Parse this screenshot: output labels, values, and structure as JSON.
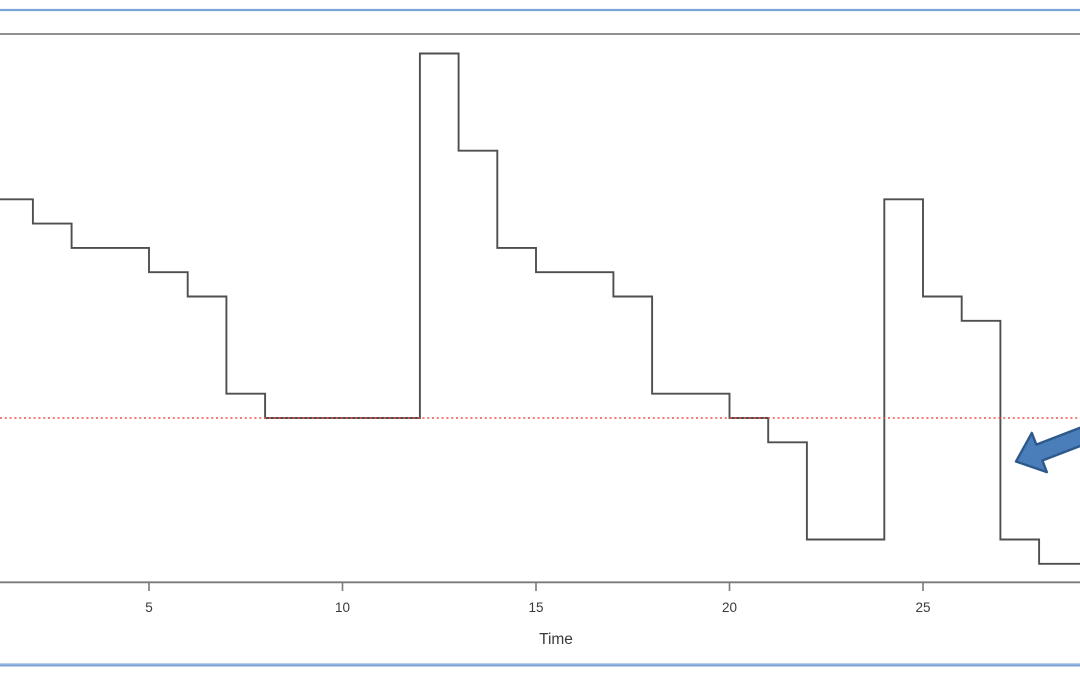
{
  "chart_data": {
    "type": "line",
    "subtype": "step",
    "title": "",
    "xlabel": "Time",
    "ylabel": "",
    "x_ticks": [
      5,
      10,
      15,
      20,
      25
    ],
    "x": [
      1,
      2,
      3,
      4,
      5,
      6,
      7,
      8,
      9,
      10,
      11,
      12,
      13,
      14,
      15,
      16,
      17,
      18,
      19,
      20,
      21,
      22,
      23,
      24,
      25,
      26,
      27,
      28
    ],
    "values": [
      9,
      8,
      7,
      7,
      6,
      5,
      1,
      0,
      0,
      0,
      0,
      15,
      11,
      7,
      6,
      6,
      5,
      1,
      1,
      0,
      -1,
      -5,
      -5,
      9,
      5,
      4,
      -5,
      -6
    ],
    "reference_line": {
      "y": 0,
      "style": "dotted",
      "color": "#f0524f"
    },
    "xlim_visible": [
      1.15,
      29.05
    ],
    "ylim_visible": [
      -6.8,
      15.9
    ],
    "grid": false,
    "legend": "none",
    "notes": "Step (stairs) plot cropped at left and right; y-axis not visible. Horizontal red dotted reference line at y=0. Plot box top border visible.",
    "annotations": [
      {
        "shape": "block-arrow",
        "direction": "down-left",
        "tip_near_time": 27.5,
        "description": "Thick blue block arrow entering from the right edge, pointing down-left at the drop below the reference line near time 27"
      }
    ]
  },
  "colors": {
    "background": "#ffffff",
    "step_line": "#4f4f4f",
    "reference_line": "#f0524f",
    "axis_line": "#7a7a7a",
    "plot_border": "#808080",
    "frame_border": "#7ba3d6",
    "frame_border_light": "#b9cfe8",
    "arrow_fill": "#4a7ebb",
    "arrow_border": "#2e598c",
    "text": "#3a3a3a"
  }
}
